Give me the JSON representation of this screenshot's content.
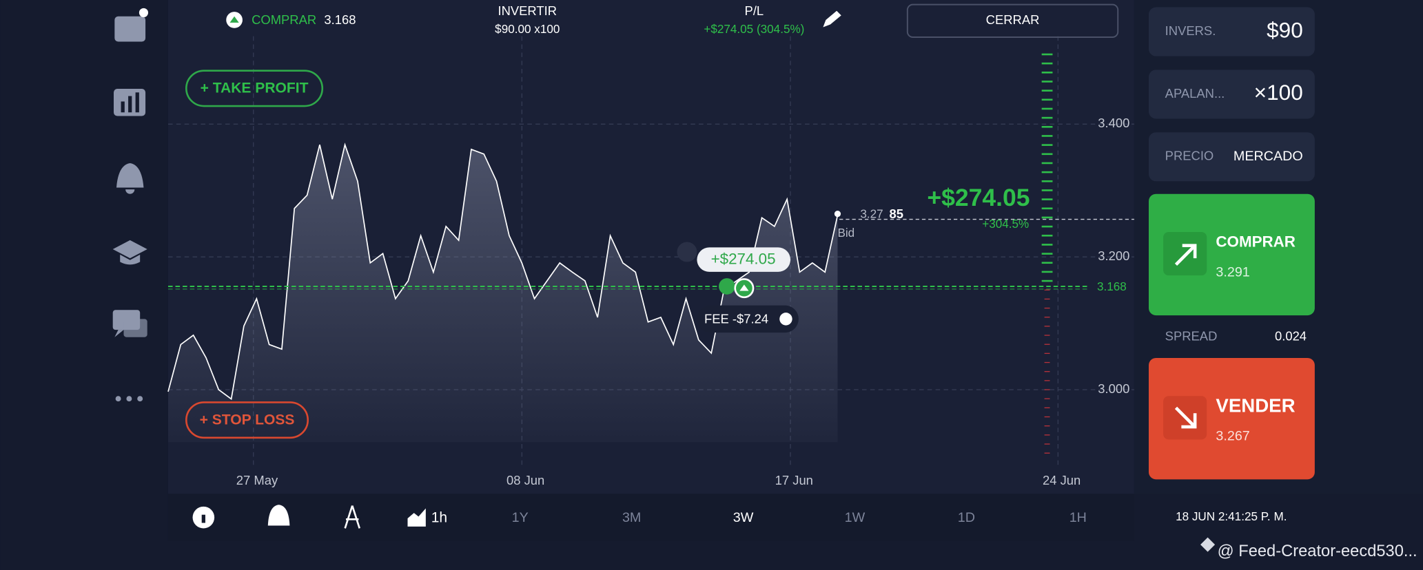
{
  "header": {
    "buy_label": "COMPRAR",
    "buy_price": "3.168",
    "invest_label": "INVERTIR",
    "invest_value": "$90.00 x100",
    "pl_label": "P/L",
    "pl_value": "+$274.05 (304.5%)",
    "close_button": "CERRAR"
  },
  "chart": {
    "type": "line",
    "color": "#ffffff",
    "ylim": [
      2.92,
      3.52
    ],
    "yticks": [
      {
        "value": 3.4,
        "label": "3.400"
      },
      {
        "value": 3.2,
        "label": "3.200"
      },
      {
        "value": 3.0,
        "label": "3.000"
      }
    ],
    "xticks": [
      "27 May",
      "08 Jun",
      "17 Jun",
      "24 Jun"
    ],
    "grid": true,
    "values": [
      2.997,
      3.068,
      3.082,
      3.048,
      3.0,
      2.986,
      3.096,
      3.137,
      3.068,
      3.061,
      3.273,
      3.293,
      3.369,
      3.287,
      3.369,
      3.314,
      3.191,
      3.205,
      3.137,
      3.164,
      3.232,
      3.177,
      3.246,
      3.225,
      3.362,
      3.355,
      3.314,
      3.232,
      3.191,
      3.137,
      3.164,
      3.191,
      3.177,
      3.164,
      3.109,
      3.232,
      3.191,
      3.177,
      3.102,
      3.109,
      3.068,
      3.137,
      3.075,
      3.055,
      3.15,
      3.164,
      3.177,
      3.259,
      3.246,
      3.287,
      3.177,
      3.191,
      3.177,
      3.263
    ]
  },
  "chart_overlays": {
    "take_profit": "+ TAKE PROFIT",
    "stop_loss": "+ STOP LOSS",
    "pl_big": "+$274.05",
    "pl_pct": "+304.5%",
    "bid_price": "3.27",
    "bid_digits": "85",
    "bid_label": "Bid",
    "entry_price": "3.168",
    "position_pl": "+$274.05",
    "fee": "FEE -$7.24"
  },
  "toolbar": {
    "timeframe": "1h",
    "periods": [
      "1Y",
      "3M",
      "3W",
      "1W",
      "1D",
      "1H"
    ],
    "active_period": "3W"
  },
  "clock": "18 JUN 2:41:25 P. M.",
  "order_panel": {
    "invest_label": "INVERS.",
    "invest_value": "$90",
    "leverage_label": "APALAN...",
    "leverage_value": "×100",
    "price_label": "PRECIO",
    "price_value": "MERCADO",
    "buy_label": "COMPRAR",
    "buy_price": "3.291",
    "spread_label": "SPREAD",
    "spread_value": "0.024",
    "sell_label": "VENDER",
    "sell_price": "3.267"
  },
  "watermark": "@ Feed-Creator-eecd530..."
}
